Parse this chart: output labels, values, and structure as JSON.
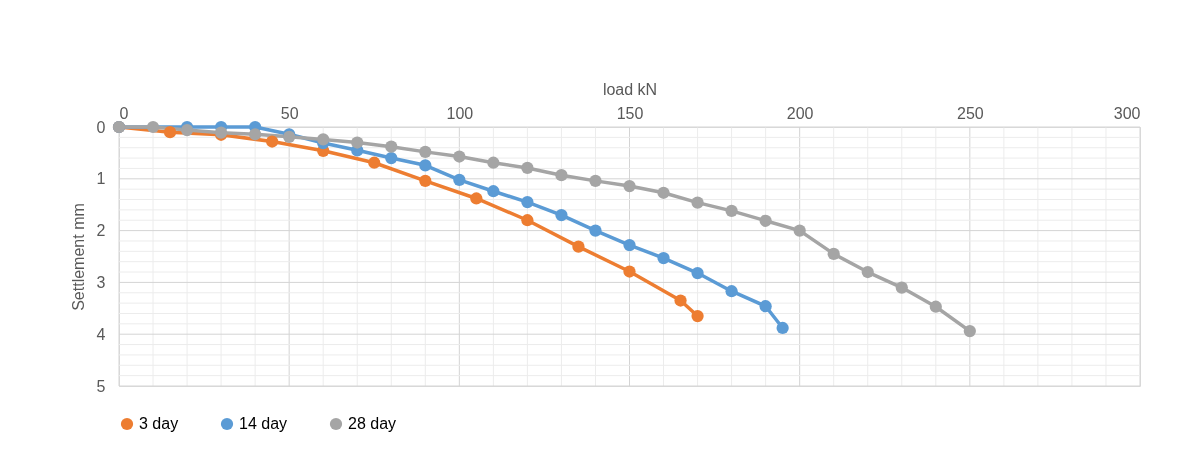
{
  "chart_data": {
    "type": "line",
    "xlabel": "load kN",
    "ylabel": "Settlement mm",
    "xlim": [
      0,
      300
    ],
    "ylim": [
      5,
      0
    ],
    "xticks": [
      0,
      {
        "value": 10,
        "label": null
      },
      {
        "value": 20,
        "label": null
      },
      {
        "value": 30,
        "label": null
      },
      {
        "value": 40,
        "label": null
      },
      50,
      {
        "value": 60,
        "label": null
      },
      {
        "value": 70,
        "label": null
      },
      {
        "value": 80,
        "label": null
      },
      {
        "value": 90,
        "label": null
      },
      100,
      {
        "value": 110,
        "label": null
      },
      {
        "value": 120,
        "label": null
      },
      {
        "value": 130,
        "label": null
      },
      {
        "value": 140,
        "label": null
      },
      150,
      {
        "value": 160,
        "label": null
      },
      {
        "value": 170,
        "label": null
      },
      {
        "value": 180,
        "label": null
      },
      {
        "value": 190,
        "label": null
      },
      200,
      {
        "value": 210,
        "label": null
      },
      {
        "value": 220,
        "label": null
      },
      {
        "value": 230,
        "label": null
      },
      {
        "value": 240,
        "label": null
      },
      250,
      {
        "value": 260,
        "label": null
      },
      {
        "value": 270,
        "label": null
      },
      {
        "value": 280,
        "label": null
      },
      {
        "value": 290,
        "label": null
      },
      300
    ],
    "yticks": [
      0,
      {
        "value": 0.2,
        "label": null
      },
      {
        "value": 0.4,
        "label": null
      },
      {
        "value": 0.6,
        "label": null
      },
      {
        "value": 0.8,
        "label": null
      },
      1,
      {
        "value": 1.2,
        "label": null
      },
      {
        "value": 1.4,
        "label": null
      },
      {
        "value": 1.6,
        "label": null
      },
      {
        "value": 1.8,
        "label": null
      },
      2,
      {
        "value": 2.2,
        "label": null
      },
      {
        "value": 2.4,
        "label": null
      },
      {
        "value": 2.6,
        "label": null
      },
      {
        "value": 2.8,
        "label": null
      },
      3,
      {
        "value": 3.2,
        "label": null
      },
      {
        "value": 3.4,
        "label": null
      },
      {
        "value": 3.6,
        "label": null
      },
      {
        "value": 3.8,
        "label": null
      },
      4,
      {
        "value": 4.2,
        "label": null
      },
      {
        "value": 4.4,
        "label": null
      },
      {
        "value": 4.6,
        "label": null
      },
      {
        "value": 4.8,
        "label": null
      },
      5
    ],
    "grid": true,
    "legend": "bottom",
    "marker": "circle",
    "line_style": "solid",
    "series": [
      {
        "name": "3 day",
        "color": "#ed7d31",
        "x": [
          0,
          15,
          30,
          45,
          60,
          75,
          90,
          105,
          120,
          135,
          150,
          165,
          170
        ],
        "values": [
          0,
          0.1,
          0.15,
          0.28,
          0.46,
          0.69,
          1.04,
          1.38,
          1.8,
          2.31,
          2.79,
          3.35,
          3.65
        ]
      },
      {
        "name": "14 day",
        "color": "#5b9bd5",
        "x": [
          0,
          20,
          30,
          40,
          50,
          60,
          70,
          80,
          90,
          100,
          110,
          120,
          130,
          140,
          150,
          160,
          170,
          180,
          190,
          195
        ],
        "values": [
          0,
          0,
          0,
          0,
          0.14,
          0.31,
          0.45,
          0.6,
          0.74,
          1.02,
          1.24,
          1.45,
          1.7,
          2.0,
          2.28,
          2.53,
          2.82,
          3.17,
          3.46,
          3.88
        ]
      },
      {
        "name": "28 day",
        "color": "#a5a5a5",
        "x": [
          0,
          10,
          20,
          30,
          40,
          50,
          60,
          70,
          80,
          90,
          100,
          110,
          120,
          130,
          140,
          150,
          160,
          170,
          180,
          190,
          200,
          210,
          220,
          230,
          240,
          250
        ],
        "values": [
          0,
          0,
          0.06,
          0.11,
          0.14,
          0.19,
          0.24,
          0.3,
          0.38,
          0.48,
          0.57,
          0.69,
          0.79,
          0.93,
          1.04,
          1.14,
          1.27,
          1.46,
          1.62,
          1.81,
          2.0,
          2.45,
          2.8,
          3.1,
          3.47,
          3.94
        ]
      }
    ]
  }
}
